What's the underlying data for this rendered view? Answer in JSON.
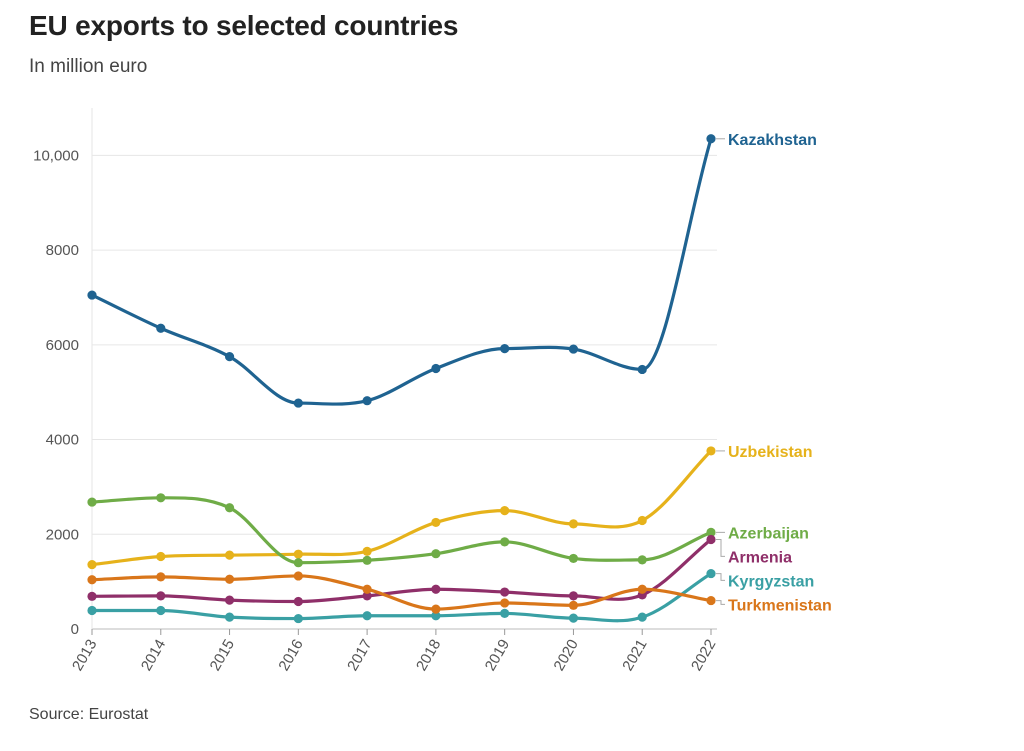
{
  "header": {
    "title": "EU exports to selected countries",
    "subtitle": "In million euro"
  },
  "footer": {
    "source": "Source: Eurostat"
  },
  "chart_data": {
    "type": "line",
    "title": "EU exports to selected countries",
    "subtitle": "In million euro",
    "xlabel": "",
    "ylabel": "",
    "x": [
      "2013",
      "2014",
      "2015",
      "2016",
      "2017",
      "2018",
      "2019",
      "2020",
      "2021",
      "2022"
    ],
    "ylim": [
      0,
      11000
    ],
    "yticks": [
      0,
      2000,
      4000,
      6000,
      8000,
      10000
    ],
    "ytick_labels": [
      "0",
      "2000",
      "4000",
      "6000",
      "8000",
      "10,000"
    ],
    "grid": true,
    "legend": "direct labels at line ends",
    "series": [
      {
        "name": "Kazakhstan",
        "color": "#1f6391",
        "values": [
          7050,
          6350,
          5750,
          4770,
          4820,
          5500,
          5920,
          5910,
          5480,
          10350
        ]
      },
      {
        "name": "Uzbekistan",
        "color": "#e6b21b",
        "values": [
          1360,
          1530,
          1560,
          1580,
          1640,
          2250,
          2500,
          2220,
          2290,
          3760
        ]
      },
      {
        "name": "Azerbaijan",
        "color": "#6fac47",
        "values": [
          2680,
          2770,
          2560,
          1400,
          1450,
          1590,
          1840,
          1490,
          1460,
          2040
        ]
      },
      {
        "name": "Armenia",
        "color": "#8f2f69",
        "values": [
          690,
          700,
          610,
          580,
          700,
          840,
          780,
          700,
          720,
          1890
        ]
      },
      {
        "name": "Kyrgyzstan",
        "color": "#3aa0a4",
        "values": [
          390,
          390,
          250,
          220,
          280,
          280,
          330,
          230,
          250,
          1170
        ]
      },
      {
        "name": "Turkmenistan",
        "color": "#d9761a",
        "values": [
          1040,
          1100,
          1050,
          1120,
          840,
          420,
          550,
          500,
          840,
          600
        ]
      }
    ]
  }
}
